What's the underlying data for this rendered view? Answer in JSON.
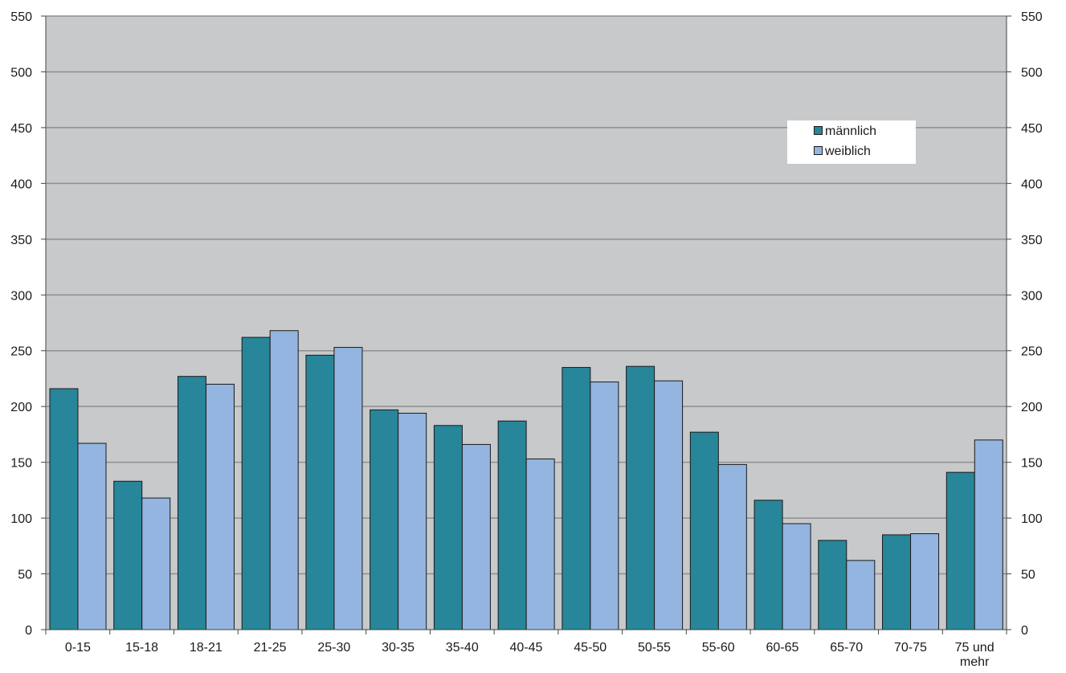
{
  "chart_data": {
    "type": "bar",
    "categories": [
      "0-15",
      "15-18",
      "18-21",
      "21-25",
      "25-30",
      "30-35",
      "35-40",
      "40-45",
      "45-50",
      "50-55",
      "55-60",
      "60-65",
      "65-70",
      "70-75",
      "75 und mehr"
    ],
    "series": [
      {
        "name": "männlich",
        "color": "#27869a",
        "values": [
          216,
          133,
          227,
          262,
          246,
          197,
          183,
          187,
          235,
          236,
          177,
          116,
          80,
          85,
          141
        ]
      },
      {
        "name": "weiblich",
        "color": "#93b5e0",
        "values": [
          167,
          118,
          220,
          268,
          253,
          194,
          166,
          153,
          222,
          223,
          148,
          95,
          62,
          86,
          170
        ]
      }
    ],
    "ylim": [
      0,
      550
    ],
    "yticks": [
      0,
      50,
      100,
      150,
      200,
      250,
      300,
      350,
      400,
      450,
      500,
      550
    ],
    "grid": true,
    "plot_background": "#c8c9cb",
    "legend_position": "top-right"
  }
}
